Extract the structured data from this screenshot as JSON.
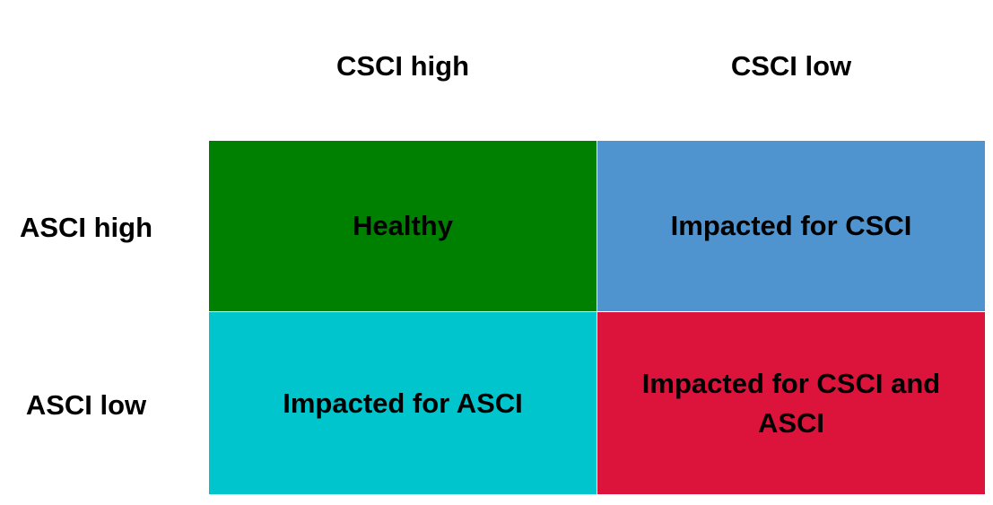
{
  "columns": [
    {
      "label": "CSCI high"
    },
    {
      "label": "CSCI low"
    }
  ],
  "rows": [
    {
      "label": "ASCI high"
    },
    {
      "label": "ASCI low"
    }
  ],
  "cells": [
    {
      "label": "Healthy",
      "color": "#008000"
    },
    {
      "label": "Impacted for CSCI",
      "color": "#4f94cf"
    },
    {
      "label": "Impacted for ASCI",
      "color": "#00c5cd"
    },
    {
      "label": "Impacted for CSCI and ASCI",
      "color": "#dc143c"
    }
  ]
}
